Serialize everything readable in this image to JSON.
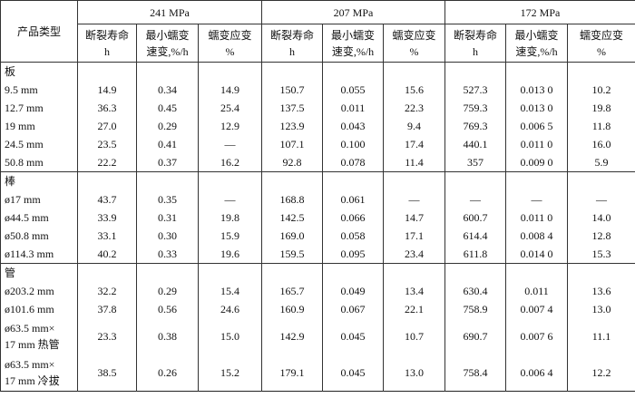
{
  "table": {
    "header": {
      "row_label": "产品类型",
      "groups": [
        {
          "title": "241 MPa",
          "columns": [
            "断裂寿命\nh",
            "最小蠕变\n速变,%/h",
            "蠕变应变\n%"
          ]
        },
        {
          "title": "207 MPa",
          "columns": [
            "断裂寿命\nh",
            "最小蠕变\n速变,%/h",
            "蠕变应变\n%"
          ]
        },
        {
          "title": "172 MPa",
          "columns": [
            "断裂寿命\nh",
            "最小蠕变\n速变,%/h",
            "蠕变应变\n%"
          ]
        }
      ]
    },
    "sections": [
      {
        "name": "板",
        "rows": [
          {
            "label": "9.5 mm",
            "cells": [
              "14.9",
              "0.34",
              "14.9",
              "150.7",
              "0.055",
              "15.6",
              "527.3",
              "0.013 0",
              "10.2"
            ]
          },
          {
            "label": "12.7 mm",
            "cells": [
              "36.3",
              "0.45",
              "25.4",
              "137.5",
              "0.011",
              "22.3",
              "759.3",
              "0.013 0",
              "19.8"
            ]
          },
          {
            "label": "19 mm",
            "cells": [
              "27.0",
              "0.29",
              "12.9",
              "123.9",
              "0.043",
              "9.4",
              "769.3",
              "0.006 5",
              "11.8"
            ]
          },
          {
            "label": "24.5 mm",
            "cells": [
              "23.5",
              "0.41",
              "—",
              "107.1",
              "0.100",
              "17.4",
              "440.1",
              "0.011 0",
              "16.0"
            ]
          },
          {
            "label": "50.8 mm",
            "cells": [
              "22.2",
              "0.37",
              "16.2",
              "92.8",
              "0.078",
              "11.4",
              "357",
              "0.009 0",
              "5.9"
            ]
          }
        ]
      },
      {
        "name": "棒",
        "rows": [
          {
            "label": "ø17 mm",
            "cells": [
              "43.7",
              "0.35",
              "—",
              "168.8",
              "0.061",
              "—",
              "—",
              "—",
              "—"
            ]
          },
          {
            "label": "ø44.5 mm",
            "cells": [
              "33.9",
              "0.31",
              "19.8",
              "142.5",
              "0.066",
              "14.7",
              "600.7",
              "0.011 0",
              "14.0"
            ]
          },
          {
            "label": "ø50.8 mm",
            "cells": [
              "33.1",
              "0.30",
              "15.9",
              "169.0",
              "0.058",
              "17.1",
              "614.4",
              "0.008 4",
              "12.8"
            ]
          },
          {
            "label": "ø114.3 mm",
            "cells": [
              "40.2",
              "0.33",
              "19.6",
              "159.5",
              "0.095",
              "23.4",
              "611.8",
              "0.014 0",
              "15.3"
            ]
          }
        ]
      },
      {
        "name": "管",
        "rows": [
          {
            "label": "ø203.2 mm",
            "cells": [
              "32.2",
              "0.29",
              "15.4",
              "165.7",
              "0.049",
              "13.4",
              "630.4",
              "0.011",
              "13.6"
            ]
          },
          {
            "label": "ø101.6 mm",
            "cells": [
              "37.8",
              "0.56",
              "24.6",
              "160.9",
              "0.067",
              "22.1",
              "758.9",
              "0.007 4",
              "13.0"
            ]
          },
          {
            "label": "ø63.5 mm×\n17 mm 热管",
            "cells": [
              "23.3",
              "0.38",
              "15.0",
              "142.9",
              "0.045",
              "10.7",
              "690.7",
              "0.007 6",
              "11.1"
            ]
          },
          {
            "label": "ø63.5 mm×\n17 mm 冷拔",
            "cells": [
              "38.5",
              "0.26",
              "15.2",
              "179.1",
              "0.045",
              "13.0",
              "758.4",
              "0.006 4",
              "12.2"
            ]
          }
        ]
      }
    ]
  }
}
